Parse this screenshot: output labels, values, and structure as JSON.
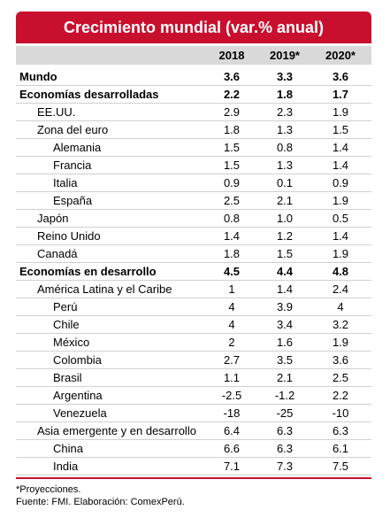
{
  "title": "Crecimiento mundial (var.% anual)",
  "table": {
    "columns": [
      "2018",
      "2019*",
      "2020*"
    ],
    "rows": [
      {
        "label": "Mundo",
        "level": 0,
        "bold": true,
        "values": [
          "3.6",
          "3.3",
          "3.6"
        ]
      },
      {
        "label": "Economías desarrolladas",
        "level": 0,
        "bold": true,
        "values": [
          "2.2",
          "1.8",
          "1.7"
        ]
      },
      {
        "label": "EE.UU.",
        "level": 1,
        "bold": false,
        "values": [
          "2.9",
          "2.3",
          "1.9"
        ]
      },
      {
        "label": "Zona del euro",
        "level": 1,
        "bold": false,
        "values": [
          "1.8",
          "1.3",
          "1.5"
        ]
      },
      {
        "label": "Alemania",
        "level": 2,
        "bold": false,
        "values": [
          "1.5",
          "0.8",
          "1.4"
        ]
      },
      {
        "label": "Francia",
        "level": 2,
        "bold": false,
        "values": [
          "1.5",
          "1.3",
          "1.4"
        ]
      },
      {
        "label": "Italia",
        "level": 2,
        "bold": false,
        "values": [
          "0.9",
          "0.1",
          "0.9"
        ]
      },
      {
        "label": "España",
        "level": 2,
        "bold": false,
        "values": [
          "2.5",
          "2.1",
          "1.9"
        ]
      },
      {
        "label": "Japón",
        "level": 1,
        "bold": false,
        "values": [
          "0.8",
          "1.0",
          "0.5"
        ]
      },
      {
        "label": "Reino Unido",
        "level": 1,
        "bold": false,
        "values": [
          "1.4",
          "1.2",
          "1.4"
        ]
      },
      {
        "label": "Canadá",
        "level": 1,
        "bold": false,
        "values": [
          "1.8",
          "1.5",
          "1.9"
        ]
      },
      {
        "label": "Economías en desarrollo",
        "level": 0,
        "bold": true,
        "values": [
          "4.5",
          "4.4",
          "4.8"
        ]
      },
      {
        "label": "América Latina y el Caribe",
        "level": 1,
        "bold": false,
        "values": [
          "1",
          "1.4",
          "2.4"
        ]
      },
      {
        "label": "Perú",
        "level": 2,
        "bold": false,
        "values": [
          "4",
          "3.9",
          "4"
        ]
      },
      {
        "label": "Chile",
        "level": 2,
        "bold": false,
        "values": [
          "4",
          "3.4",
          "3.2"
        ]
      },
      {
        "label": "México",
        "level": 2,
        "bold": false,
        "values": [
          "2",
          "1.6",
          "1.9"
        ]
      },
      {
        "label": "Colombia",
        "level": 2,
        "bold": false,
        "values": [
          "2.7",
          "3.5",
          "3.6"
        ]
      },
      {
        "label": "Brasil",
        "level": 2,
        "bold": false,
        "values": [
          "1.1",
          "2.1",
          "2.5"
        ]
      },
      {
        "label": "Argentina",
        "level": 2,
        "bold": false,
        "values": [
          "-2.5",
          "-1.2",
          "2.2"
        ]
      },
      {
        "label": "Venezuela",
        "level": 2,
        "bold": false,
        "values": [
          "-18",
          "-25",
          "-10"
        ]
      },
      {
        "label": "Asia emergente y en desarrollo",
        "level": 1,
        "bold": false,
        "values": [
          "6.4",
          "6.3",
          "6.3"
        ]
      },
      {
        "label": "China",
        "level": 2,
        "bold": false,
        "values": [
          "6.6",
          "6.3",
          "6.1"
        ]
      },
      {
        "label": "India",
        "level": 2,
        "bold": false,
        "values": [
          "7.1",
          "7.3",
          "7.5"
        ]
      }
    ]
  },
  "notes": [
    "*Proyecciones.",
    "Fuente: FMI. Elaboración: ComexPerú."
  ]
}
